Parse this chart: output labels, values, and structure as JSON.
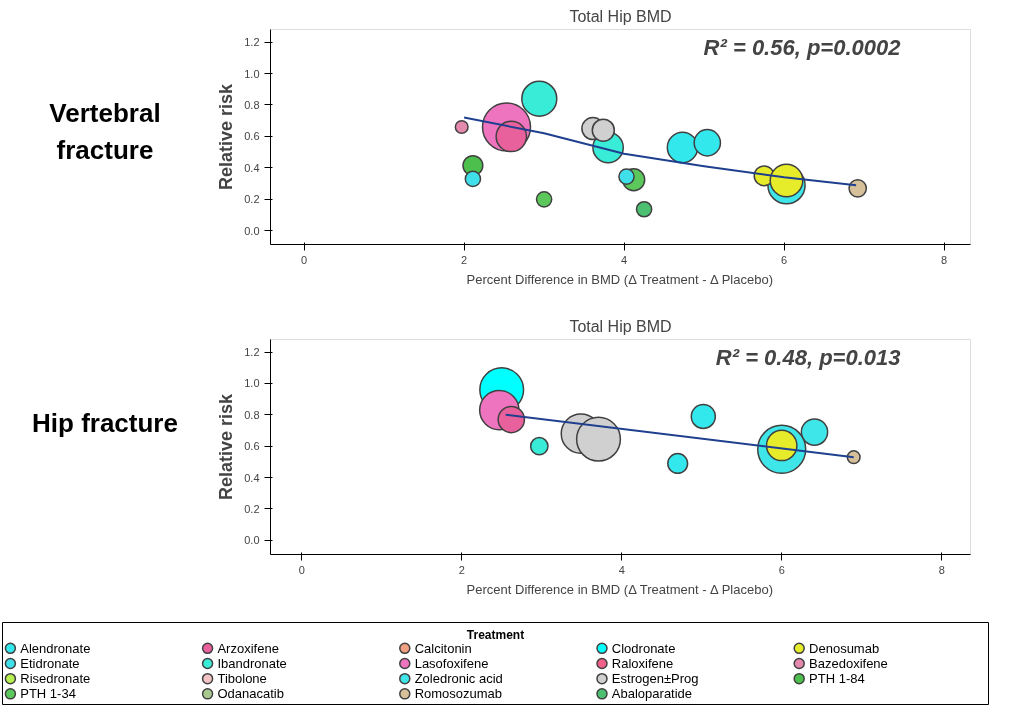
{
  "chart_data": [
    {
      "type": "bubble",
      "title": "Total Hip BMD",
      "xlabel": "Percent Difference in BMD (Δ Treatment - Δ Placebo)",
      "ylabel": "Relative risk",
      "annotations": [
        "Vertebral fracture",
        "R² = 0.56, p=0.0002"
      ],
      "xlim": [
        -0.42,
        8.33
      ],
      "ylim": [
        -0.087,
        1.28
      ],
      "xticks": [
        0,
        2,
        4,
        6,
        8
      ],
      "yticks": [
        {
          "value": 0,
          "label": "0.0"
        },
        {
          "value": 0.2,
          "label": "0.2"
        },
        {
          "value": 0.4,
          "label": "0.4"
        },
        {
          "value": 0.6,
          "label": "0.6"
        },
        {
          "value": 0.8,
          "label": "0.8"
        },
        {
          "value": 1,
          "label": "1.0"
        },
        {
          "value": 1.2,
          "label": "1.2"
        }
      ],
      "grid": false,
      "legend": "bottom",
      "series": [
        {
          "name": "Alendronate",
          "color": "#33e8ec",
          "x": [
            4.73,
            5.04
          ],
          "values": [
            0.53,
            0.56
          ],
          "sizes": [
            0.4,
            0.3
          ]
        },
        {
          "name": "Arzoxifene",
          "color": "#e8609c",
          "x": [
            2.59
          ],
          "values": [
            0.6
          ],
          "sizes": [
            0.4
          ]
        },
        {
          "name": "Denosumab",
          "color": "#e6ec2a",
          "x": [
            5.75,
            6.03
          ],
          "values": [
            0.35,
            0.32
          ],
          "sizes": [
            0.17,
            0.46
          ]
        },
        {
          "name": "Etidronate",
          "color": "#40e0ea",
          "x": [
            2.11,
            4.03
          ],
          "values": [
            0.33,
            0.345
          ],
          "sizes": [
            0.1,
            0.1
          ]
        },
        {
          "name": "Ibandronate",
          "color": "#38ecd8",
          "x": [
            2.94,
            3.8
          ],
          "values": [
            0.84,
            0.53
          ],
          "sizes": [
            0.53,
            0.4
          ]
        },
        {
          "name": "Lasofoxifene",
          "color": "#ee74c0",
          "x": [
            2.53
          ],
          "values": [
            0.66
          ],
          "sizes": [
            1
          ]
        },
        {
          "name": "Bazedoxifene",
          "color": "#e58aae",
          "x": [
            1.97
          ],
          "values": [
            0.66
          ],
          "sizes": [
            0.07
          ]
        },
        {
          "name": "Zoledronic acid",
          "color": "#3ee6ea",
          "x": [
            6.03
          ],
          "values": [
            0.29
          ],
          "sizes": [
            0.6
          ]
        },
        {
          "name": "Estrogen±Prog",
          "color": "#d0d0d0",
          "x": [
            3.61,
            3.74
          ],
          "values": [
            0.65,
            0.64
          ],
          "sizes": [
            0.21,
            0.21
          ]
        },
        {
          "name": "PTH 1-84",
          "color": "#4cbf4c",
          "x": [
            2.11
          ],
          "values": [
            0.415
          ],
          "sizes": [
            0.17
          ]
        },
        {
          "name": "PTH 1-34",
          "color": "#5cc85c",
          "x": [
            3.0,
            4.12
          ],
          "values": [
            0.2,
            0.325
          ],
          "sizes": [
            0.1,
            0.21
          ]
        },
        {
          "name": "Romosozumab",
          "color": "#d6c09a",
          "x": [
            6.92
          ],
          "values": [
            0.27
          ],
          "sizes": [
            0.13
          ]
        },
        {
          "name": "Abaloparatide",
          "color": "#4cc070",
          "x": [
            4.25
          ],
          "values": [
            0.137
          ],
          "sizes": [
            0.1
          ]
        },
        {
          "type": "line",
          "color": "#1f3f8f",
          "x": [
            2.0,
            3.0,
            4.0,
            5.0,
            6.0,
            6.9
          ],
          "values": [
            0.72,
            0.62,
            0.49,
            0.41,
            0.34,
            0.29
          ]
        }
      ]
    },
    {
      "type": "bubble",
      "title": "Total Hip BMD",
      "xlabel": "Percent Difference in BMD (Δ Treatment - Δ Placebo)",
      "ylabel": "Relative risk",
      "legend_title": "Treatment",
      "annotations": [
        "Hip fracture",
        "R² = 0.48, p=0.013"
      ],
      "xlim": [
        -0.39,
        8.36
      ],
      "ylim": [
        -0.09,
        1.28
      ],
      "xticks": [
        0,
        2,
        4,
        6,
        8
      ],
      "yticks": [
        {
          "value": 0,
          "label": "0.0"
        },
        {
          "value": 0.2,
          "label": "0.2"
        },
        {
          "value": 0.4,
          "label": "0.4"
        },
        {
          "value": 0.6,
          "label": "0.6"
        },
        {
          "value": 0.8,
          "label": "0.8"
        },
        {
          "value": 1,
          "label": "1.0"
        },
        {
          "value": 1.2,
          "label": "1.2"
        }
      ],
      "grid": false,
      "legend": "bottom",
      "series": [
        {
          "name": "Alendronate",
          "color": "#33e8ec",
          "x": [
            5.02,
            4.7
          ],
          "values": [
            0.79,
            0.49
          ],
          "sizes": [
            0.25,
            0.17
          ]
        },
        {
          "name": "Arzoxifene",
          "color": "#e8609c",
          "x": [
            2.62
          ],
          "values": [
            0.77
          ],
          "sizes": [
            0.3
          ]
        },
        {
          "name": "Calcitonin",
          "color": "#f0a080"
        },
        {
          "name": "Clodronate",
          "color": "#00ffff",
          "x": [
            2.5
          ],
          "values": [
            0.96
          ],
          "sizes": [
            0.83
          ]
        },
        {
          "name": "Denosumab",
          "color": "#e6ec2a",
          "x": [
            6.0
          ],
          "values": [
            0.605
          ],
          "sizes": [
            0.4
          ]
        },
        {
          "name": "Etidronate",
          "color": "#40e0ea"
        },
        {
          "name": "Ibandronate",
          "color": "#38ecd8",
          "x": [
            2.97
          ],
          "values": [
            0.6
          ],
          "sizes": [
            0.13
          ]
        },
        {
          "name": "Lasofoxifene",
          "color": "#ee74c0",
          "x": [
            2.47
          ],
          "values": [
            0.83
          ],
          "sizes": [
            0.67
          ]
        },
        {
          "name": "Raloxifene",
          "color": "#f06088"
        },
        {
          "name": "Bazedoxifene",
          "color": "#e58aae"
        },
        {
          "name": "Risedronate",
          "color": "#b8f050"
        },
        {
          "name": "Tibolone",
          "color": "#f4c4c4"
        },
        {
          "name": "Zoledronic acid",
          "color": "#3ee6ea",
          "x": [
            6.41,
            6.0
          ],
          "values": [
            0.69,
            0.58
          ],
          "sizes": [
            0.3,
            1
          ]
        },
        {
          "name": "Estrogen±Prog",
          "color": "#d0d0d0",
          "x": [
            3.49,
            3.71
          ],
          "values": [
            0.68,
            0.645
          ],
          "sizes": [
            0.67,
            0.83
          ]
        },
        {
          "name": "PTH 1-84",
          "color": "#4cbf4c"
        },
        {
          "name": "PTH 1-34",
          "color": "#5cc85c"
        },
        {
          "name": "Odanacatib",
          "color": "#a8c890"
        },
        {
          "name": "Romosozumab",
          "color": "#d6c09a",
          "x": [
            6.9
          ],
          "values": [
            0.53
          ],
          "sizes": [
            0.07
          ]
        },
        {
          "name": "Abaloparatide",
          "color": "#4cc070"
        },
        {
          "type": "line",
          "color": "#1f3f8f",
          "x": [
            2.55,
            6.9
          ],
          "values": [
            0.8,
            0.53
          ]
        }
      ]
    }
  ]
}
